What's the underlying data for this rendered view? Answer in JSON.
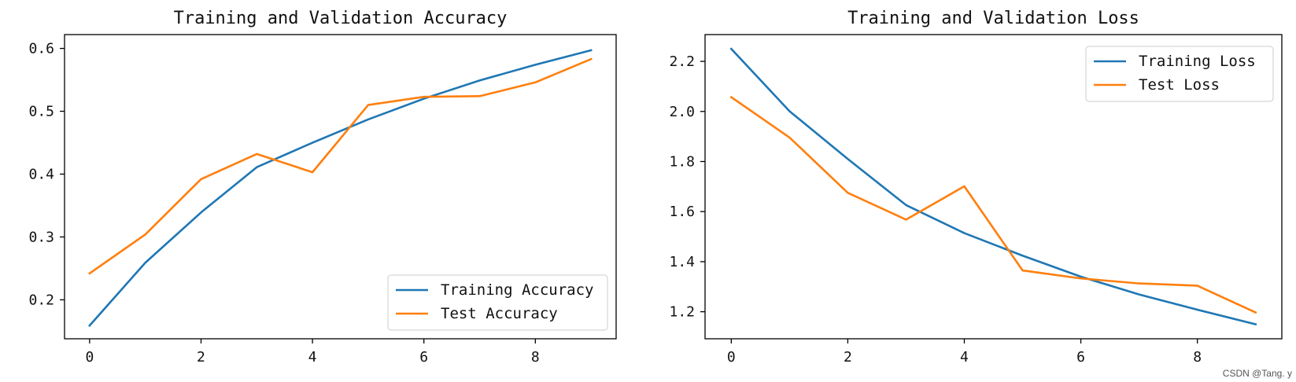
{
  "chart_data": [
    {
      "type": "line",
      "title": "Training and Validation Accuracy",
      "xlabel": "",
      "ylabel": "",
      "xlim": [
        -0.45,
        9.45
      ],
      "ylim": [
        0.138,
        0.622
      ],
      "xticks": [
        0,
        2,
        4,
        6,
        8
      ],
      "xtick_labels": [
        "0",
        "2",
        "4",
        "6",
        "8"
      ],
      "yticks": [
        0.2,
        0.3,
        0.4,
        0.5,
        0.6
      ],
      "ytick_labels": [
        "0.2",
        "0.3",
        "0.4",
        "0.5",
        "0.6"
      ],
      "legend_position": "lower-right",
      "x": [
        0,
        1,
        2,
        3,
        4,
        5,
        6,
        7,
        8,
        9
      ],
      "series": [
        {
          "name": "Training Accuracy",
          "color": "#1f77b4",
          "values": [
            0.159,
            0.259,
            0.339,
            0.411,
            0.45,
            0.487,
            0.52,
            0.549,
            0.574,
            0.597
          ]
        },
        {
          "name": "Test Accuracy",
          "color": "#ff7f0e",
          "values": [
            0.242,
            0.304,
            0.392,
            0.432,
            0.403,
            0.51,
            0.523,
            0.524,
            0.546,
            0.583
          ]
        }
      ]
    },
    {
      "type": "line",
      "title": "Training and Validation Loss",
      "xlabel": "",
      "ylabel": "",
      "xlim": [
        -0.45,
        9.45
      ],
      "ylim": [
        1.092,
        2.307
      ],
      "xticks": [
        0,
        2,
        4,
        6,
        8
      ],
      "xtick_labels": [
        "0",
        "2",
        "4",
        "6",
        "8"
      ],
      "yticks": [
        1.2,
        1.4,
        1.6,
        1.8,
        2.0,
        2.2
      ],
      "ytick_labels": [
        "1.2",
        "1.4",
        "1.6",
        "1.8",
        "2.0",
        "2.2"
      ],
      "legend_position": "upper-right",
      "x": [
        0,
        1,
        2,
        3,
        4,
        5,
        6,
        7,
        8,
        9
      ],
      "series": [
        {
          "name": "Training Loss",
          "color": "#1f77b4",
          "values": [
            2.25,
            2.001,
            1.81,
            1.626,
            1.514,
            1.424,
            1.34,
            1.269,
            1.208,
            1.15
          ]
        },
        {
          "name": "Test Loss",
          "color": "#ff7f0e",
          "values": [
            2.057,
            1.896,
            1.675,
            1.568,
            1.701,
            1.365,
            1.333,
            1.313,
            1.304,
            1.197
          ]
        }
      ]
    }
  ],
  "watermark": "CSDN @Tang. y"
}
